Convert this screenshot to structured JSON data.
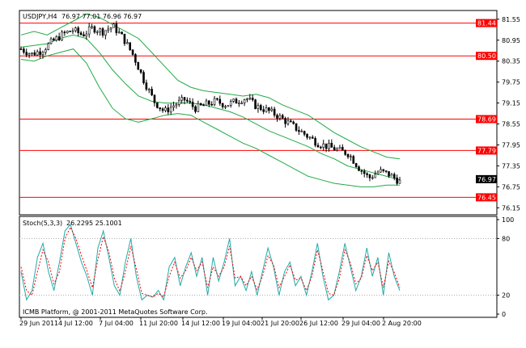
{
  "header": {
    "symbol_timeframe": "USDJPY,H4",
    "ohlc": "76.97 77.01 76.96 76.97"
  },
  "stoch_header": {
    "label": "Stoch(5,3,3)",
    "values": "26.2295 25.1001"
  },
  "footer": {
    "copyright": "ICMB Platform, @ 2001-2011 MetaQuotes Software Corp."
  },
  "colors": {
    "candle": "#000000",
    "bollinger": "#22aa44",
    "level_line": "#ff0000",
    "level_label_bg": "#ff0000",
    "current_price_bg": "#000000",
    "stoch_main": "#22aaaa",
    "stoch_signal": "#ff0000"
  },
  "chart_data": [
    {
      "type": "candlestick",
      "title": "USDJPY,H4",
      "price_axis_ticks": [
        "81.55",
        "80.95",
        "80.35",
        "79.75",
        "79.15",
        "78.55",
        "77.95",
        "77.35",
        "76.75",
        "76.15"
      ],
      "ylim": [
        75.95,
        81.8
      ],
      "time_axis_ticks": [
        "29 Jun 2011",
        "4 Jul 12:00",
        "7 Jul 04:00",
        "11 Jul 20:00",
        "14 Jul 12:00",
        "19 Jul 04:00",
        "21 Jul 20:00",
        "26 Jul 12:00",
        "29 Jul 04:00",
        "2 Aug 20:00"
      ],
      "levels": [
        {
          "value": 81.44,
          "label": "81.44"
        },
        {
          "value": 80.5,
          "label": "80.50"
        },
        {
          "value": 78.69,
          "label": "78.69"
        },
        {
          "value": 77.79,
          "label": "77.79"
        },
        {
          "value": 76.45,
          "label": "76.45"
        }
      ],
      "current_price": {
        "value": 76.97,
        "label": "76.97"
      },
      "close_path": [
        80.7,
        80.55,
        80.65,
        80.9,
        81.1,
        81.25,
        81.1,
        81.3,
        81.2,
        81.35,
        81.0,
        80.5,
        79.8,
        79.2,
        78.9,
        79.1,
        79.25,
        79.0,
        79.1,
        79.2,
        79.1,
        79.2,
        79.3,
        79.05,
        78.95,
        78.8,
        78.6,
        78.4,
        78.2,
        78.0,
        77.9,
        77.8,
        77.7,
        77.3,
        77.0,
        77.2,
        77.1,
        76.9
      ],
      "bollinger_upper": [
        81.1,
        81.2,
        81.1,
        81.3,
        81.5,
        81.7,
        81.6,
        81.4,
        81.2,
        81.0,
        80.6,
        80.2,
        79.8,
        79.6,
        79.5,
        79.45,
        79.4,
        79.35,
        79.4,
        79.3,
        79.1,
        78.95,
        78.8,
        78.55,
        78.3,
        78.1,
        77.9,
        77.75,
        77.6,
        77.55
      ],
      "bollinger_middle": [
        80.75,
        80.8,
        80.85,
        81.0,
        81.1,
        81.0,
        80.6,
        80.1,
        79.7,
        79.35,
        79.2,
        79.15,
        79.15,
        79.15,
        79.1,
        79.0,
        78.9,
        78.75,
        78.55,
        78.35,
        78.2,
        78.05,
        77.9,
        77.7,
        77.55,
        77.35,
        77.25,
        77.15,
        77.05,
        76.95
      ],
      "bollinger_lower": [
        80.4,
        80.35,
        80.5,
        80.6,
        80.7,
        80.3,
        79.6,
        79.0,
        78.7,
        78.6,
        78.7,
        78.8,
        78.85,
        78.8,
        78.6,
        78.4,
        78.2,
        78.0,
        77.85,
        77.65,
        77.45,
        77.25,
        77.05,
        76.95,
        76.85,
        76.8,
        76.75,
        76.75,
        76.8,
        76.8
      ]
    },
    {
      "type": "line",
      "title": "Stoch(5,3,3)",
      "ylim": [
        0,
        100
      ],
      "y_ticks": [
        "100",
        "80",
        "20",
        "0"
      ],
      "series": [
        {
          "values": [
            45,
            15,
            25,
            60,
            75,
            45,
            25,
            55,
            88,
            95,
            75,
            55,
            40,
            20,
            70,
            88,
            60,
            30,
            20,
            55,
            80,
            40,
            15,
            20,
            18,
            25,
            15,
            50,
            60,
            30,
            50,
            65,
            40,
            60,
            20,
            60,
            35,
            55,
            80,
            30,
            40,
            25,
            45,
            20,
            45,
            70,
            50,
            20,
            45,
            55,
            30,
            40,
            20,
            45,
            75,
            40,
            15,
            20,
            45,
            75,
            50,
            25,
            40,
            70,
            40,
            60,
            20,
            65,
            40,
            25
          ]
        },
        {
          "values": [
            50,
            25,
            20,
            45,
            68,
            55,
            32,
            45,
            80,
            92,
            80,
            62,
            46,
            28,
            58,
            82,
            66,
            38,
            24,
            45,
            72,
            48,
            22,
            20,
            18,
            22,
            18,
            40,
            55,
            38,
            46,
            60,
            46,
            55,
            28,
            50,
            40,
            50,
            72,
            38,
            40,
            30,
            40,
            26,
            40,
            62,
            52,
            28,
            40,
            52,
            36,
            38,
            25,
            40,
            68,
            46,
            22,
            20,
            38,
            68,
            54,
            32,
            38,
            62,
            46,
            55,
            28,
            56,
            44,
            28
          ]
        }
      ]
    }
  ]
}
